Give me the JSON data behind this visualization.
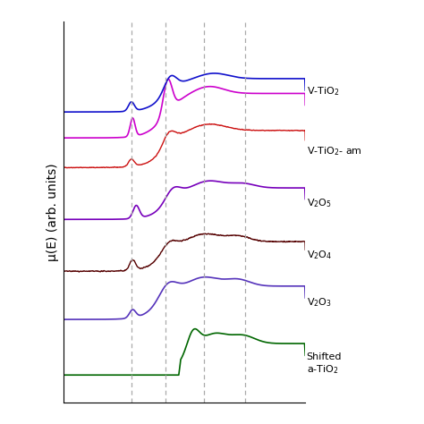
{
  "ylabel": "μ(E) (arb. units)",
  "background_color": "#ffffff",
  "vlines": [
    0.28,
    0.42,
    0.58,
    0.75
  ],
  "vline_color": "#aaaaaa",
  "offsets": {
    "vtio2_blue": 7.0,
    "vtio2_am": 5.5,
    "v2o5": 4.1,
    "v2o4": 2.7,
    "v2o3": 1.4,
    "atio2": -0.05,
    "vtio2_mag": 6.3
  },
  "colors": {
    "vtio2_blue": "#1111cc",
    "vtio2_am": "#cc1111",
    "v2o5": "#7700bb",
    "v2o4": "#550000",
    "v2o3": "#5533bb",
    "atio2": "#006600",
    "vtio2_mag": "#cc00cc"
  },
  "labels": {
    "vtio2_blue": "V-TiO$_2$",
    "vtio2_am": "V-TiO$_2$- am",
    "v2o5": "V$_2$O$_5$",
    "v2o4": "V$_2$O$_4$",
    "v2o3": "V$_2$O$_3$",
    "atio2": "Shifted\na-TiO$_2$"
  },
  "label_y_offsets": {
    "vtio2_blue": 0.6,
    "vtio2_am": 0.5,
    "v2o5": 0.5,
    "v2o4": 0.5,
    "v2o3": 0.5,
    "atio2": 0.3
  },
  "xlim": [
    0.0,
    1.0
  ],
  "ylim": [
    -0.8,
    9.5
  ]
}
